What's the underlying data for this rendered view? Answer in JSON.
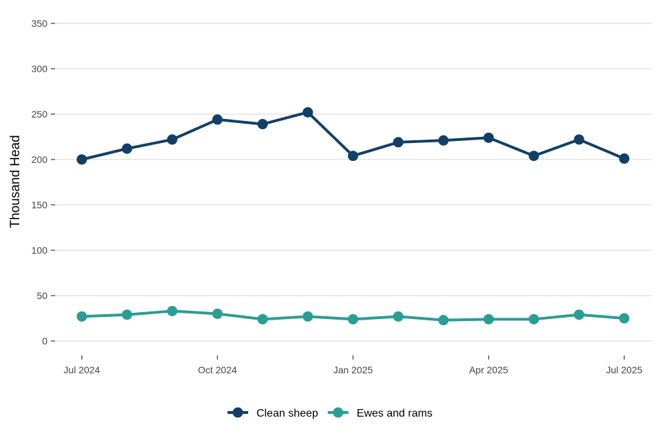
{
  "chart_data": {
    "type": "line",
    "title": "",
    "xlabel": "",
    "ylabel": "Thousand Head",
    "ylim": [
      0,
      350
    ],
    "yticks": [
      0,
      50,
      100,
      150,
      200,
      250,
      300,
      350
    ],
    "x_tick_labels": [
      {
        "date": "2024-07",
        "label": "Jul 2024"
      },
      {
        "date": "2024-10",
        "label": "Oct 2024"
      },
      {
        "date": "2025-01",
        "label": "Jan 2025"
      },
      {
        "date": "2025-04",
        "label": "Apr 2025"
      },
      {
        "date": "2025-07",
        "label": "Jul 2025"
      }
    ],
    "x": [
      "2024-07",
      "2024-08",
      "2024-09",
      "2024-10",
      "2024-11",
      "2024-12",
      "2025-01",
      "2025-02",
      "2025-03",
      "2025-04",
      "2025-05",
      "2025-06",
      "2025-07"
    ],
    "series": [
      {
        "name": "Clean sheep",
        "color": "#123f66",
        "values": [
          200,
          212,
          222,
          244,
          239,
          252,
          204,
          219,
          221,
          224,
          204,
          222,
          201
        ]
      },
      {
        "name": "Ewes and rams",
        "color": "#2a9d94",
        "values": [
          27,
          29,
          33,
          30,
          24,
          27,
          24,
          27,
          23,
          24,
          24,
          29,
          25
        ]
      }
    ],
    "grid": true,
    "legend_position": "bottom"
  }
}
